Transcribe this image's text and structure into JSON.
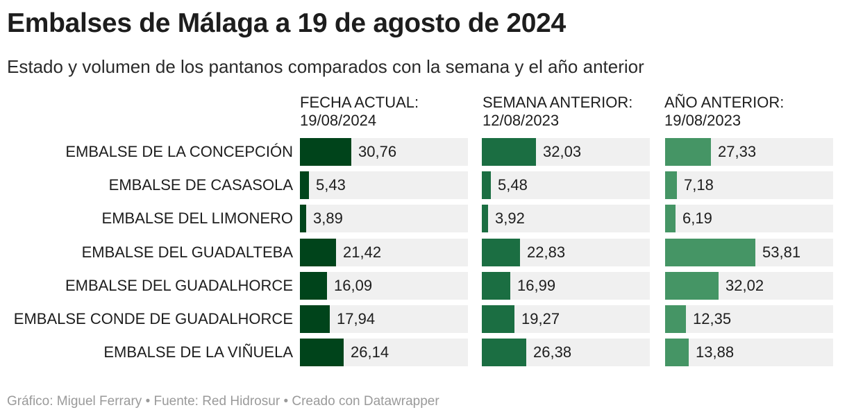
{
  "chart_data": {
    "type": "table",
    "title": "Embalses de Málaga a 19 de agosto de 2024",
    "subtitle": "Estado y volumen de los pantanos comparados con la semana y el año anterior",
    "footer": {
      "author": "Gráfico: Miguel Ferrary",
      "source": "Fuente: Red Hidrosur",
      "tool": "Creado con Datawrapper",
      "separator": "•"
    },
    "xlim": [
      0,
      100
    ],
    "columns": [
      {
        "line1": "FECHA ACTUAL:",
        "line2": "19/08/2024",
        "color": "#00441b"
      },
      {
        "line1": "SEMANA ANTERIOR:",
        "line2": "12/08/2023",
        "color": "#1b6e42"
      },
      {
        "line1": "AÑO ANTERIOR:",
        "line2": "19/08/2023",
        "color": "#459565"
      }
    ],
    "rows": [
      {
        "name": "EMBALSE DE LA CONCEPCIÓN",
        "values": [
          30.76,
          32.03,
          27.33
        ],
        "labels": [
          "30,76",
          "32,03",
          "27,33"
        ]
      },
      {
        "name": "EMBALSE DE CASASOLA",
        "values": [
          5.43,
          5.48,
          7.18
        ],
        "labels": [
          "5,43",
          "5,48",
          "7,18"
        ]
      },
      {
        "name": "EMBALSE DEL LIMONERO",
        "values": [
          3.89,
          3.92,
          6.19
        ],
        "labels": [
          "3,89",
          "3,92",
          "6,19"
        ]
      },
      {
        "name": "EMBALSE DEL GUADALTEBA",
        "values": [
          21.42,
          22.83,
          53.81
        ],
        "labels": [
          "21,42",
          "22,83",
          "53,81"
        ]
      },
      {
        "name": "EMBALSE DEL GUADALHORCE",
        "values": [
          16.09,
          16.99,
          32.02
        ],
        "labels": [
          "16,09",
          "16,99",
          "32,02"
        ]
      },
      {
        "name": "EMBALSE CONDE DE GUADALHORCE",
        "values": [
          17.94,
          19.27,
          12.35
        ],
        "labels": [
          "17,94",
          "19,27",
          "12,35"
        ]
      },
      {
        "name": "EMBALSE DE LA VIÑUELA",
        "values": [
          26.14,
          26.38,
          13.88
        ],
        "labels": [
          "26,14",
          "26,38",
          "13,88"
        ]
      }
    ]
  }
}
